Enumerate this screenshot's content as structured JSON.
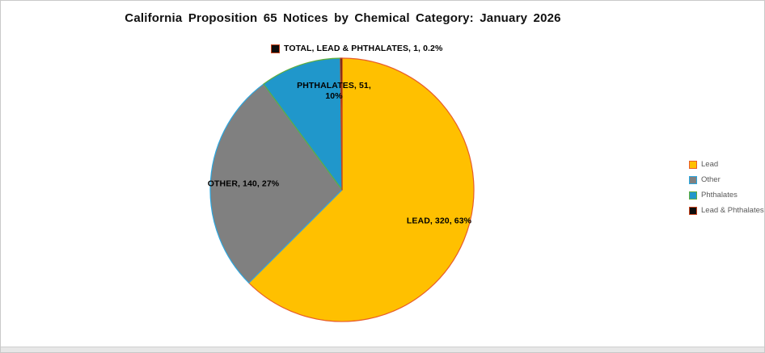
{
  "chart_data": {
    "type": "pie",
    "title": "California Proposition 65 Notices by Chemical Category: January 2026",
    "categories": [
      "Lead",
      "Other",
      "Phthalates",
      "Lead & Phthalates"
    ],
    "values": [
      320,
      140,
      51,
      1
    ],
    "percent_labels": [
      "63%",
      "27%",
      "10%",
      "0.2%"
    ],
    "slice_labels": [
      "LEAD, 320, 63%",
      "OTHER, 140, 27%",
      "PHTHALATES, 51, 10%",
      "TOTAL, LEAD & PHTHALATES, 1, 0.2%"
    ],
    "slice_fills": [
      "#FFC000",
      "#808080",
      "#2097CB",
      "#0D0D0D"
    ],
    "slice_strokes": [
      "#E85D2A",
      "#2BA7E0",
      "#5FAE3E",
      "#C6431C"
    ],
    "start_angle_deg": 0,
    "direction": "clockwise",
    "legend": {
      "position": "right",
      "entries": [
        {
          "label": "Lead"
        },
        {
          "label": "Other"
        },
        {
          "label": "Phthalates"
        },
        {
          "label": "Lead & Phthalates"
        }
      ]
    }
  },
  "colors": {
    "background": "#FFFFFF",
    "title_text": "#111111",
    "data_label_text": "#000000",
    "legend_text": "#595959",
    "frame_border": "#C9C9C9",
    "bottom_bar": "#E7E7E7"
  }
}
